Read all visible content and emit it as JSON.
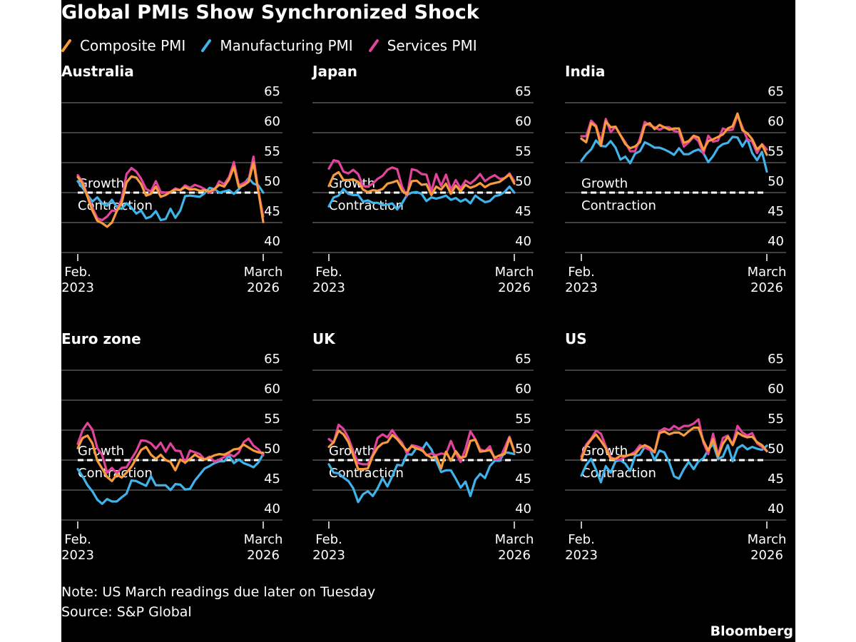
{
  "page": {
    "title": "Global PMIs Show Synchronized Shock",
    "note": "Note: US March readings due later on Tuesday",
    "source": "Source: S&P Global",
    "logo": "Bloomberg",
    "legend": [
      {
        "name": "Composite PMI",
        "color": "#f99a3c"
      },
      {
        "name": "Manufacturing PMI",
        "color": "#3fb3ea"
      },
      {
        "name": "Services PMI",
        "color": "#e2439b"
      }
    ],
    "background": "#000000",
    "gridline_color": "#555555",
    "threshold_color": "#ffffff"
  },
  "chart_data": [
    {
      "type": "line",
      "title": "Australia",
      "x_start": "Feb. 2023",
      "x_end": "March 2026",
      "x_tick_labels": [
        [
          "Feb.",
          "2023"
        ],
        [
          "March",
          "2026"
        ]
      ],
      "ylim": [
        40,
        65
      ],
      "yticks": [
        40,
        45,
        50,
        55,
        60,
        65
      ],
      "threshold": 50,
      "threshold_labels": [
        "Growth",
        "Contraction"
      ],
      "series": [
        {
          "name": "Manufacturing PMI",
          "color": "#3fb3ea",
          "values": [
            51.9,
            50.8,
            49.6,
            48.5,
            49.2,
            48.2,
            47.8,
            48.8,
            47.6,
            47.3,
            48.2,
            47.5,
            46.5,
            47.0,
            45.7,
            46.0,
            46.9,
            45.4,
            45.6,
            47.3,
            45.8,
            47.0,
            49.4,
            49.5,
            49.4,
            49.3,
            49.9,
            50.8,
            50.6,
            50.0,
            50.2,
            50.4,
            49.8,
            50.6,
            51.4,
            52.4,
            51.5,
            51.2,
            50.0
          ]
        },
        {
          "name": "Services PMI",
          "color": "#e2439b",
          "values": [
            52.9,
            51.8,
            49.5,
            47.5,
            45.7,
            45.4,
            46.0,
            47.0,
            46.9,
            49.0,
            53.1,
            54.1,
            53.5,
            52.3,
            50.6,
            50.2,
            51.9,
            50.1,
            50.0,
            50.1,
            50.7,
            50.4,
            51.2,
            50.8,
            51.3,
            51.0,
            50.6,
            50.0,
            50.4,
            51.9,
            51.4,
            52.6,
            55.1,
            51.2,
            51.6,
            52.1,
            56.0,
            50.3,
            46.0
          ]
        },
        {
          "name": "Composite PMI",
          "color": "#f99a3c",
          "values": [
            52.6,
            51.5,
            49.3,
            47.0,
            45.3,
            44.9,
            44.3,
            45.0,
            46.9,
            48.3,
            51.7,
            52.7,
            52.5,
            51.4,
            49.5,
            49.8,
            51.0,
            49.3,
            49.6,
            50.1,
            50.5,
            50.4,
            50.9,
            50.5,
            50.6,
            50.3,
            50.4,
            50.2,
            50.6,
            51.3,
            51.0,
            52.2,
            54.3,
            50.9,
            51.2,
            51.8,
            55.0,
            50.2,
            45.1
          ]
        }
      ]
    },
    {
      "type": "line",
      "title": "Japan",
      "x_start": "Feb. 2023",
      "x_end": "March 2026",
      "x_tick_labels": [
        [
          "Feb.",
          "2023"
        ],
        [
          "March",
          "2026"
        ]
      ],
      "ylim": [
        40,
        65
      ],
      "yticks": [
        40,
        45,
        50,
        55,
        60,
        65
      ],
      "threshold": 50,
      "threshold_labels": [
        "Growth",
        "Contraction"
      ],
      "series": [
        {
          "name": "Manufacturing PMI",
          "color": "#3fb3ea",
          "values": [
            47.7,
            49.2,
            49.5,
            50.6,
            49.8,
            49.6,
            49.6,
            48.5,
            48.7,
            48.3,
            48.3,
            47.9,
            48.0,
            48.2,
            47.2,
            48.2,
            49.6,
            50.0,
            50.1,
            49.8,
            48.6,
            49.2,
            49.0,
            49.2,
            49.5,
            48.8,
            49.1,
            48.5,
            48.9,
            48.2,
            49.5,
            48.9,
            48.4,
            48.6,
            49.4,
            49.6,
            50.1,
            51.0,
            50.0
          ]
        },
        {
          "name": "Services PMI",
          "color": "#e2439b",
          "values": [
            54.0,
            55.4,
            55.2,
            53.5,
            53.2,
            53.8,
            53.1,
            51.1,
            51.0,
            51.5,
            52.3,
            52.8,
            53.8,
            54.2,
            53.9,
            51.0,
            49.4,
            53.9,
            53.7,
            53.1,
            53.0,
            50.2,
            53.1,
            51.1,
            53.0,
            50.5,
            52.1,
            50.7,
            52.0,
            51.5,
            52.2,
            53.1,
            51.9,
            52.5,
            52.9,
            52.3,
            52.4,
            53.2,
            51.9
          ]
        },
        {
          "name": "Composite PMI",
          "color": "#f99a3c",
          "values": [
            51.1,
            52.9,
            53.4,
            52.1,
            52.1,
            52.2,
            51.8,
            50.5,
            50.1,
            50.4,
            50.3,
            50.6,
            51.5,
            51.7,
            52.0,
            50.3,
            49.7,
            51.9,
            52.0,
            51.3,
            51.4,
            49.6,
            51.0,
            50.5,
            51.5,
            49.8,
            51.2,
            50.2,
            51.3,
            50.8,
            51.1,
            51.6,
            50.9,
            51.4,
            51.6,
            51.8,
            52.4,
            53.0,
            51.5
          ]
        }
      ]
    },
    {
      "type": "line",
      "title": "India",
      "x_start": "Feb. 2023",
      "x_end": "March 2026",
      "x_tick_labels": [
        [
          "Feb.",
          "2023"
        ],
        [
          "March",
          "2026"
        ]
      ],
      "ylim": [
        40,
        65
      ],
      "yticks": [
        40,
        45,
        50,
        55,
        60,
        65
      ],
      "threshold": 50,
      "threshold_labels": [
        "Growth",
        "Contraction"
      ],
      "series": [
        {
          "name": "Manufacturing PMI",
          "color": "#3fb3ea",
          "values": [
            55.3,
            56.4,
            57.2,
            58.7,
            57.8,
            57.7,
            58.6,
            57.5,
            55.5,
            56.0,
            54.9,
            56.5,
            56.9,
            58.4,
            58.0,
            57.5,
            57.5,
            57.2,
            56.8,
            56.3,
            57.4,
            56.4,
            56.4,
            56.9,
            57.2,
            56.6,
            55.1,
            56.1,
            57.5,
            58.1,
            58.3,
            59.3,
            59.2,
            57.7,
            59.0,
            56.6,
            55.4,
            56.8,
            53.5
          ]
        },
        {
          "name": "Services PMI",
          "color": "#e2439b",
          "values": [
            59.4,
            59.4,
            62.0,
            61.2,
            58.5,
            62.3,
            60.1,
            61.0,
            59.6,
            58.4,
            56.9,
            56.9,
            59.0,
            61.8,
            61.2,
            60.9,
            60.5,
            60.9,
            60.9,
            60.3,
            60.1,
            57.7,
            58.4,
            59.3,
            58.6,
            56.5,
            59.5,
            58.5,
            58.7,
            60.7,
            60.4,
            60.5,
            62.9,
            60.9,
            58.9,
            58.5,
            56.6,
            58.1,
            57.2
          ]
        },
        {
          "name": "Composite PMI",
          "color": "#f99a3c",
          "values": [
            59.0,
            58.4,
            61.6,
            61.0,
            57.8,
            61.9,
            60.9,
            61.0,
            59.6,
            58.1,
            57.4,
            57.7,
            58.4,
            61.2,
            61.6,
            60.6,
            61.3,
            60.9,
            60.5,
            60.7,
            60.7,
            58.3,
            58.6,
            59.5,
            59.2,
            57.1,
            58.6,
            58.9,
            59.3,
            59.7,
            60.7,
            61.1,
            63.2,
            60.4,
            59.9,
            58.9,
            57.2,
            58.0,
            56.3
          ]
        }
      ]
    },
    {
      "type": "line",
      "title": "Euro zone",
      "x_start": "Feb. 2023",
      "x_end": "March 2026",
      "x_tick_labels": [
        [
          "Feb.",
          "2023"
        ],
        [
          "March",
          "2026"
        ]
      ],
      "ylim": [
        40,
        65
      ],
      "yticks": [
        40,
        45,
        50,
        55,
        60,
        65
      ],
      "threshold": 50,
      "threshold_labels": [
        "Growth",
        "Contraction"
      ],
      "series": [
        {
          "name": "Manufacturing PMI",
          "color": "#3fb3ea",
          "values": [
            48.5,
            47.3,
            45.8,
            44.8,
            43.4,
            42.7,
            43.5,
            43.1,
            43.1,
            43.8,
            44.4,
            46.6,
            46.5,
            46.1,
            45.7,
            47.3,
            45.8,
            45.8,
            45.8,
            45.0,
            46.0,
            45.9,
            45.1,
            45.2,
            46.6,
            47.6,
            48.6,
            49.0,
            49.5,
            49.8,
            49.8,
            50.7,
            49.5,
            50.1,
            49.5,
            49.2,
            48.8,
            49.6,
            51.0
          ]
        },
        {
          "name": "Services PMI",
          "color": "#e2439b",
          "values": [
            52.7,
            55.0,
            56.2,
            55.1,
            52.0,
            50.9,
            47.9,
            48.7,
            47.8,
            48.7,
            48.8,
            50.2,
            51.5,
            53.3,
            53.2,
            52.8,
            51.9,
            52.9,
            51.4,
            52.8,
            51.6,
            51.5,
            49.5,
            51.6,
            51.3,
            51.0,
            50.1,
            50.6,
            49.7,
            50.1,
            50.5,
            51.0,
            50.6,
            51.3,
            53.0,
            53.6,
            52.4,
            51.8,
            50.8
          ]
        },
        {
          "name": "Composite PMI",
          "color": "#f99a3c",
          "values": [
            52.0,
            53.7,
            54.1,
            52.8,
            49.9,
            48.6,
            47.2,
            46.5,
            47.6,
            47.1,
            47.9,
            48.9,
            50.3,
            51.7,
            52.2,
            50.9,
            50.2,
            50.9,
            50.0,
            49.7,
            48.3,
            50.1,
            49.6,
            50.2,
            50.9,
            50.4,
            50.1,
            50.4,
            50.8,
            51.0,
            50.9,
            51.3,
            51.8,
            51.9,
            52.6,
            52.1,
            51.6,
            51.3,
            51.2
          ]
        }
      ]
    },
    {
      "type": "line",
      "title": "UK",
      "x_start": "Feb. 2023",
      "x_end": "March 2026",
      "x_tick_labels": [
        [
          "Feb.",
          "2023"
        ],
        [
          "March",
          "2026"
        ]
      ],
      "ylim": [
        40,
        65
      ],
      "yticks": [
        40,
        45,
        50,
        55,
        60,
        65
      ],
      "threshold": 50,
      "threshold_labels": [
        "Growth",
        "Contraction"
      ],
      "series": [
        {
          "name": "Manufacturing PMI",
          "color": "#3fb3ea",
          "values": [
            49.3,
            47.9,
            47.8,
            47.1,
            46.5,
            45.3,
            43.0,
            44.3,
            44.8,
            44.0,
            45.3,
            47.0,
            45.6,
            47.3,
            49.2,
            49.1,
            51.0,
            50.9,
            52.1,
            51.6,
            52.9,
            51.8,
            49.9,
            48.0,
            48.3,
            48.3,
            46.9,
            45.4,
            46.4,
            44.0,
            46.7,
            47.7,
            47.0,
            49.0,
            49.9,
            49.9,
            51.3,
            51.2,
            51.0
          ]
        },
        {
          "name": "Services PMI",
          "color": "#e2439b",
          "values": [
            53.5,
            52.9,
            55.9,
            55.2,
            53.7,
            51.5,
            49.5,
            49.3,
            49.3,
            50.9,
            53.7,
            54.3,
            53.8,
            55.0,
            53.8,
            52.9,
            51.1,
            52.5,
            52.3,
            52.0,
            50.8,
            51.1,
            50.8,
            51.1,
            51.0,
            53.2,
            51.2,
            49.7,
            51.9,
            54.8,
            53.5,
            51.8,
            51.5,
            52.3,
            50.1,
            50.2,
            52.0,
            53.9,
            51.5
          ]
        },
        {
          "name": "Composite PMI",
          "color": "#f99a3c",
          "values": [
            52.2,
            53.0,
            54.9,
            54.3,
            53.0,
            50.8,
            48.5,
            48.5,
            48.6,
            50.7,
            52.1,
            52.8,
            53.0,
            54.2,
            53.5,
            52.5,
            51.6,
            52.3,
            51.9,
            51.7,
            50.9,
            50.4,
            50.6,
            48.6,
            51.4,
            49.9,
            51.5,
            50.4,
            50.6,
            53.2,
            53.4,
            51.4,
            51.5,
            51.7,
            50.4,
            50.8,
            51.0,
            53.7,
            51.4
          ]
        }
      ]
    },
    {
      "type": "line",
      "title": "US",
      "x_start": "Feb. 2023",
      "x_end": "March 2026",
      "x_tick_labels": [
        [
          "Feb.",
          "2023"
        ],
        [
          "March",
          "2026"
        ]
      ],
      "ylim": [
        40,
        65
      ],
      "yticks": [
        40,
        45,
        50,
        55,
        60,
        65
      ],
      "threshold": 50,
      "threshold_labels": [
        "Growth",
        "Contraction"
      ],
      "series": [
        {
          "name": "Manufacturing PMI",
          "color": "#3fb3ea",
          "values": [
            47.4,
            49.2,
            50.2,
            48.4,
            46.3,
            49.0,
            47.9,
            49.8,
            50.0,
            49.4,
            48.2,
            50.7,
            50.9,
            52.2,
            51.9,
            50.0,
            51.6,
            51.3,
            49.6,
            47.3,
            46.9,
            48.5,
            49.7,
            48.5,
            49.8,
            50.3,
            51.7,
            52.7,
            50.2,
            50.6,
            52.5,
            49.8,
            52.0,
            52.5,
            51.8,
            52.2,
            51.9,
            51.7,
            52.4
          ]
        },
        {
          "name": "Services PMI",
          "color": "#e2439b",
          "values": [
            50.6,
            52.6,
            53.6,
            54.9,
            54.4,
            52.3,
            50.5,
            50.1,
            50.1,
            50.6,
            50.9,
            51.4,
            52.5,
            52.1,
            51.7,
            51.3,
            54.8,
            55.3,
            55.0,
            55.7,
            55.2,
            55.7,
            55.7,
            56.1,
            56.8,
            52.9,
            51.0,
            54.4,
            50.8,
            53.7,
            54.1,
            52.6,
            55.7,
            54.6,
            54.1,
            54.5,
            52.8,
            52.2,
            51.5
          ]
        },
        {
          "name": "Composite PMI",
          "color": "#f99a3c",
          "values": [
            50.1,
            52.3,
            53.4,
            54.3,
            53.2,
            52.0,
            50.2,
            50.2,
            50.7,
            50.7,
            50.9,
            51.0,
            52.0,
            52.5,
            52.1,
            51.3,
            54.5,
            54.8,
            54.3,
            54.6,
            54.6,
            54.1,
            54.8,
            55.4,
            55.4,
            53.2,
            51.6,
            53.5,
            50.6,
            52.7,
            53.9,
            52.5,
            54.6,
            54.1,
            53.8,
            53.9,
            53.0,
            52.5,
            51.5
          ]
        }
      ]
    }
  ]
}
